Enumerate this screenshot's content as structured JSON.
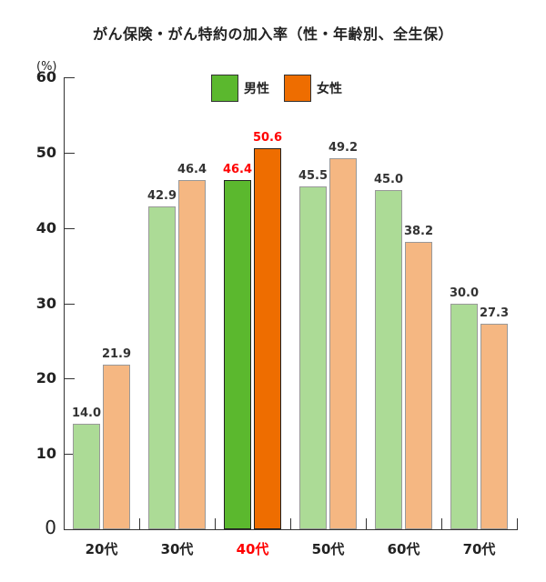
{
  "chart_data": {
    "type": "bar",
    "title": "がん保険・がん特約の加入率（性・年齢別、全生保）",
    "xlabel": "",
    "ylabel": "(%)",
    "ylim": [
      0,
      60
    ],
    "yticks": [
      0,
      10,
      20,
      30,
      40,
      50,
      60
    ],
    "grid": false,
    "legend_position": "top-center",
    "categories": [
      "20代",
      "30代",
      "40代",
      "50代",
      "60代",
      "70代"
    ],
    "highlighted_category": "40代",
    "series": [
      {
        "name": "男性",
        "values": [
          14.0,
          42.9,
          46.4,
          45.5,
          45.0,
          30.0
        ]
      },
      {
        "name": "女性",
        "values": [
          21.9,
          46.4,
          50.6,
          49.2,
          38.2,
          27.3
        ]
      }
    ]
  },
  "colors": {
    "male": "#acdb96",
    "female": "#f5b782",
    "male_highlight": "#5bb82e",
    "female_highlight": "#ee6d00",
    "highlight_text": "#ff0000"
  },
  "legend": [
    {
      "label": "男性",
      "color": "#5bb82e"
    },
    {
      "label": "女性",
      "color": "#ee6d00"
    }
  ]
}
